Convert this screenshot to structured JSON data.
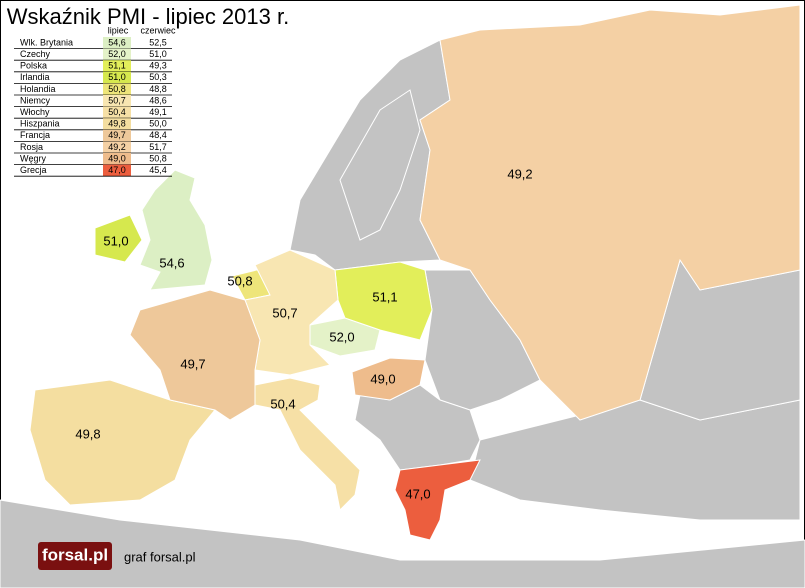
{
  "title": "Wskaźnik PMI - lipiec 2013 r.",
  "table": {
    "header": [
      "lipiec",
      "czerwiec"
    ],
    "rows": [
      [
        "Wlk. Brytania",
        "54,6",
        "52,5"
      ],
      [
        "Czechy",
        "52,0",
        "51,0"
      ],
      [
        "Polska",
        "51,1",
        "49,3"
      ],
      [
        "Irlandia",
        "51,0",
        "50,3"
      ],
      [
        "Holandia",
        "50,8",
        "48,8"
      ],
      [
        "Niemcy",
        "50,7",
        "48,6"
      ],
      [
        "Włochy",
        "50,4",
        "49,1"
      ],
      [
        "Hiszpania",
        "49,8",
        "50,0"
      ],
      [
        "Francja",
        "49,7",
        "48,4"
      ],
      [
        "Rosja",
        "49,2",
        "51,7"
      ],
      [
        "Węgry",
        "49,0",
        "50,8"
      ],
      [
        "Grecja",
        "47,0",
        "45,4"
      ]
    ],
    "colors": [
      "#dcefc4",
      "#e4f2c8",
      "#e2ee5a",
      "#d6e84e",
      "#eee57a",
      "#f8e6b2",
      "#f6e0a6",
      "#f4dea0",
      "#eec89a",
      "#f4d0a4",
      "#eebc8c",
      "#ec5e3e"
    ]
  },
  "logo": "forsal.pl",
  "credit": "graf forsal.pl"
}
